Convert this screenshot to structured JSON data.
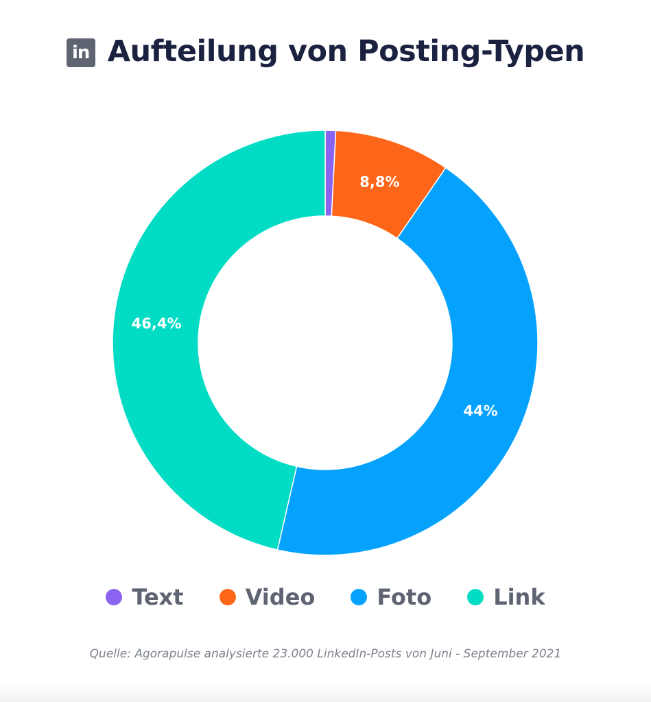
{
  "header": {
    "icon_text": "in",
    "icon_name": "linkedin-icon",
    "title": "Aufteilung von Posting-Typen"
  },
  "chart_data": {
    "type": "pie",
    "donut": true,
    "title": "Aufteilung von Posting-Typen",
    "categories": [
      "Text",
      "Video",
      "Foto",
      "Link"
    ],
    "values": [
      0.8,
      8.8,
      44,
      46.4
    ],
    "labels": [
      "",
      "8,8%",
      "44%",
      "46,4%"
    ],
    "colors": [
      "#8a63f0",
      "#fd6619",
      "#05a2fd",
      "#03dcc4"
    ],
    "legend_position": "bottom"
  },
  "legend": {
    "items": [
      {
        "label": "Text",
        "color": "#8a63f0"
      },
      {
        "label": "Video",
        "color": "#fd6619"
      },
      {
        "label": "Foto",
        "color": "#05a2fd"
      },
      {
        "label": "Link",
        "color": "#03dcc4"
      }
    ]
  },
  "source": "Quelle: Agorapulse analysierte 23.000 LinkedIn-Posts von Juni - September 2021"
}
